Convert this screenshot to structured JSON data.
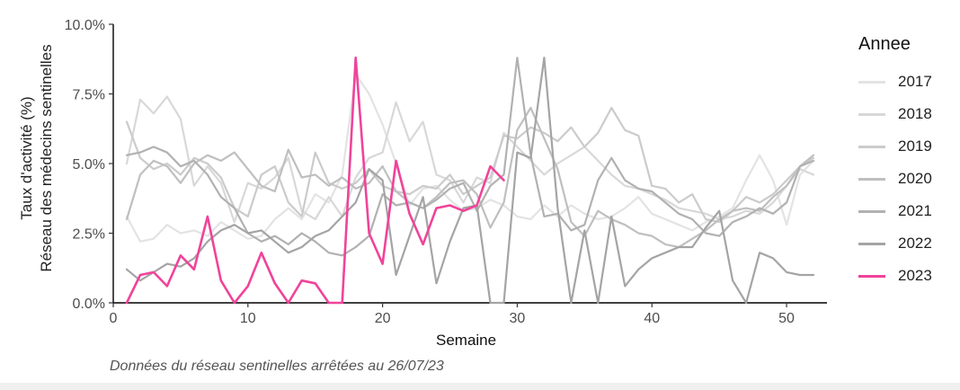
{
  "chart_data": {
    "type": "line",
    "xlabel": "Semaine",
    "ylabel_line1": "Taux d'activité (%)",
    "ylabel_line2": "Réseau des médecins sentinelles",
    "caption": "Données du réseau sentinelles arrêtées au  26/07/23",
    "legend_title": "Annee",
    "legend_position": "right",
    "grid": false,
    "xlim": [
      0,
      53
    ],
    "ylim": [
      0,
      10
    ],
    "x_ticks": [
      0,
      10,
      20,
      30,
      40,
      50
    ],
    "x_tick_labels": [
      "0",
      "10",
      "20",
      "30",
      "40",
      "50"
    ],
    "y_ticks": [
      0,
      2.5,
      5,
      7.5,
      10
    ],
    "y_tick_labels": [
      "0.0%",
      "2.5%",
      "5.0%",
      "7.5%",
      "10.0%"
    ],
    "series": [
      {
        "name": "2017",
        "color": "#e3e3e3",
        "x_start": 1,
        "values": [
          3.1,
          2.2,
          2.3,
          2.8,
          2.5,
          2.6,
          2.4,
          2.9,
          2.6,
          2.3,
          2.4,
          3.0,
          3.4,
          3.0,
          3.9,
          3.6,
          4.6,
          8.2,
          7.5,
          6.4,
          5.0,
          3.5,
          4.1,
          4.2,
          3.7,
          3.3,
          3.4,
          3.7,
          3.5,
          3.1,
          3.0,
          3.5,
          3.1,
          3.5,
          3.2,
          3.0,
          3.1,
          3.4,
          3.8,
          3.2,
          3.0,
          2.8,
          2.6,
          2.9,
          3.1,
          3.4,
          4.4,
          5.3,
          4.4,
          2.8,
          4.6,
          5.1
        ]
      },
      {
        "name": "2018",
        "color": "#d8d8d8",
        "x_start": 1,
        "values": [
          5.0,
          7.3,
          6.8,
          7.4,
          6.6,
          4.2,
          4.9,
          4.3,
          2.9,
          4.3,
          4.1,
          4.5,
          5.2,
          3.3,
          3.0,
          3.8,
          3.1,
          4.5,
          5.2,
          5.4,
          7.2,
          5.8,
          6.5,
          4.6,
          4.4,
          3.6,
          4.5,
          4.3,
          6.1,
          5.6,
          5.1,
          4.6,
          5.0,
          5.3,
          5.6,
          5.1,
          4.6,
          4.2,
          4.1,
          3.9,
          3.7,
          3.4,
          3.3,
          3.2,
          3.0,
          3.1,
          3.3,
          3.2,
          3.6,
          4.2,
          4.8,
          4.6
        ]
      },
      {
        "name": "2019",
        "color": "#cbcbcb",
        "x_start": 1,
        "values": [
          6.5,
          5.2,
          4.8,
          5.0,
          4.6,
          5.2,
          5.0,
          4.5,
          3.4,
          3.1,
          4.6,
          4.9,
          3.6,
          3.1,
          5.4,
          4.3,
          4.1,
          4.3,
          4.8,
          4.2,
          4.0,
          3.9,
          4.2,
          4.1,
          4.6,
          3.9,
          4.2,
          4.5,
          6.0,
          5.9,
          6.3,
          6.1,
          5.8,
          6.3,
          5.6,
          6.1,
          7.0,
          6.2,
          6.0,
          4.2,
          4.1,
          3.6,
          3.9,
          3.0,
          2.9,
          3.3,
          3.8,
          3.6,
          3.9,
          4.4,
          4.9,
          5.2
        ]
      },
      {
        "name": "2020",
        "color": "#bfbfbf",
        "x_start": 1,
        "values": [
          3.0,
          4.6,
          5.1,
          4.9,
          4.3,
          5.0,
          5.3,
          5.1,
          5.4,
          4.8,
          4.2,
          4.0,
          5.5,
          4.5,
          4.6,
          4.2,
          4.5,
          4.1,
          4.3,
          4.9,
          4.0,
          3.6,
          3.4,
          3.8,
          4.3,
          4.4,
          3.9,
          2.7,
          3.6,
          6.2,
          7.0,
          5.9,
          4.8,
          2.9,
          2.4,
          3.3,
          3.0,
          2.8,
          2.5,
          2.4,
          2.1,
          2.0,
          2.3,
          2.6,
          3.0,
          3.3,
          3.4,
          3.3,
          3.8,
          4.2,
          4.9,
          5.3
        ]
      },
      {
        "name": "2021",
        "color": "#b1b1b1",
        "x_start": 1,
        "values": [
          5.3,
          5.4,
          5.6,
          5.4,
          4.9,
          5.1,
          4.6,
          3.8,
          3.4,
          2.5,
          2.2,
          2.4,
          2.1,
          2.5,
          2.2,
          1.8,
          1.7,
          2.0,
          2.4,
          3.9,
          3.5,
          3.6,
          3.4,
          3.7,
          4.1,
          4.3,
          3.3,
          4.2,
          4.6,
          8.8,
          5.3,
          3.1,
          3.2,
          2.6,
          2.8,
          4.4,
          5.2,
          4.4,
          4.1,
          4.0,
          3.6,
          3.2,
          3.0,
          2.5,
          2.4,
          2.9,
          3.1,
          3.4,
          3.2,
          3.6,
          4.9,
          5.1
        ]
      },
      {
        "name": "2022",
        "color": "#a4a4a4",
        "x_start": 1,
        "values": [
          1.2,
          0.8,
          1.1,
          1.4,
          1.3,
          1.6,
          2.2,
          2.6,
          2.8,
          2.5,
          2.6,
          2.2,
          1.8,
          2.0,
          2.4,
          2.6,
          3.1,
          3.6,
          4.8,
          4.4,
          1.0,
          2.4,
          3.8,
          0.7,
          2.2,
          3.4,
          3.5,
          0.0,
          0.0,
          5.4,
          5.2,
          8.8,
          3.4,
          0.0,
          2.6,
          0.0,
          3.1,
          0.6,
          1.2,
          1.6,
          1.8,
          2.0,
          2.0,
          2.7,
          3.3,
          0.8,
          0.0,
          1.8,
          1.6,
          1.1,
          1.0,
          1.0
        ]
      },
      {
        "name": "2023",
        "color": "#f0439a",
        "x_start": 1,
        "values": [
          0.0,
          1.0,
          1.1,
          0.6,
          1.7,
          1.2,
          3.1,
          0.8,
          0.0,
          0.6,
          1.8,
          0.7,
          0.0,
          0.8,
          0.7,
          0.0,
          0.0,
          8.8,
          2.5,
          1.4,
          5.1,
          3.2,
          2.1,
          3.4,
          3.5,
          3.3,
          3.5,
          4.9,
          4.4
        ]
      }
    ]
  }
}
